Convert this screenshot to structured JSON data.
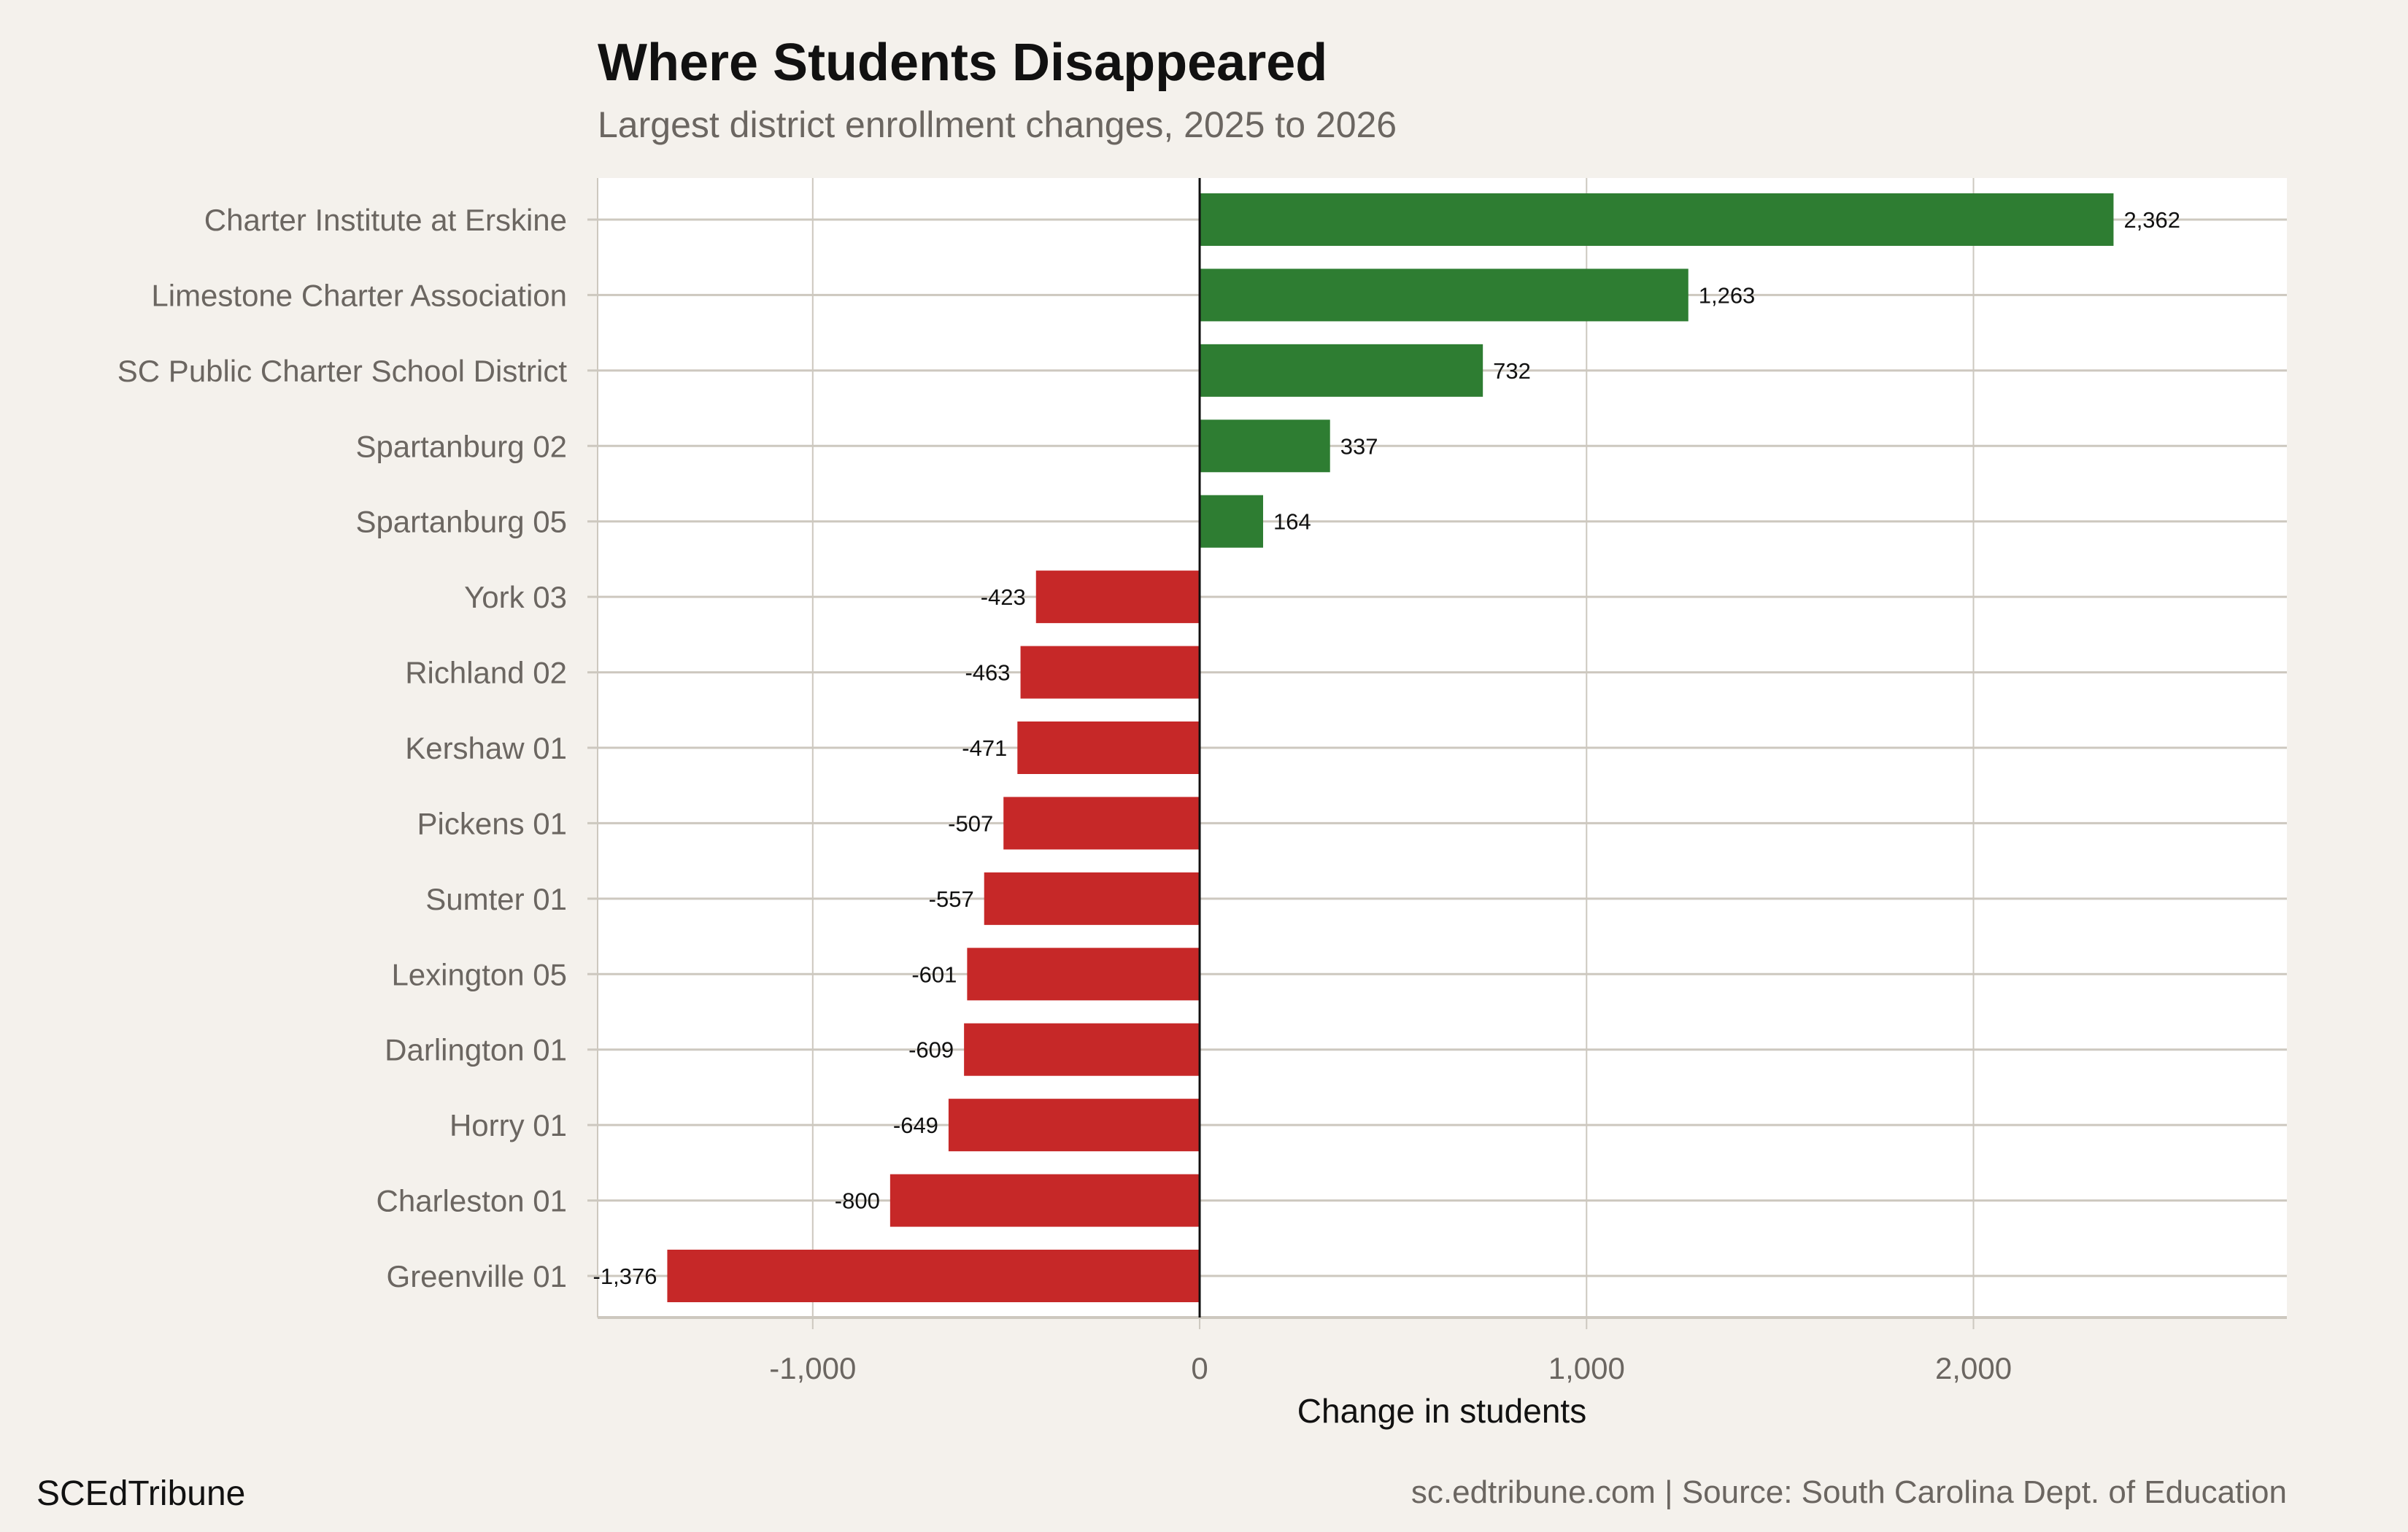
{
  "chart_data": {
    "type": "bar",
    "orientation": "horizontal",
    "title": "Where Students Disappeared",
    "subtitle": "Largest district enrollment changes, 2025 to 2026",
    "xlabel": "Change in students",
    "ylabel": "",
    "xlim": [
      -1556,
      2810
    ],
    "xticks": [
      -1000,
      0,
      1000,
      2000
    ],
    "xtick_labels": [
      "-1,000",
      "0",
      "1,000",
      "2,000"
    ],
    "grid": true,
    "categories": [
      "Charter Institute at Erskine",
      "Limestone Charter Association",
      "SC Public Charter School District",
      "Spartanburg 02",
      "Spartanburg 05",
      "York 03",
      "Richland 02",
      "Kershaw 01",
      "Pickens 01",
      "Sumter 01",
      "Lexington 05",
      "Darlington 01",
      "Horry 01",
      "Charleston 01",
      "Greenville 01"
    ],
    "values": [
      2362,
      1263,
      732,
      337,
      164,
      -423,
      -463,
      -471,
      -507,
      -557,
      -601,
      -609,
      -649,
      -800,
      -1376
    ],
    "value_labels": [
      "2,362",
      "1,263",
      "732",
      "337",
      "164",
      "-423",
      "-463",
      "-471",
      "-507",
      "-557",
      "-601",
      "-609",
      "-649",
      "-800",
      "-1,376"
    ],
    "colors": {
      "positive": "#2e7d32",
      "negative": "#c62828",
      "background": "#f4f1ec",
      "panel": "#ffffff",
      "grid": "#cdc8bf"
    }
  },
  "footer": {
    "brand": "SCEdTribune",
    "source": "sc.edtribune.com | Source: South Carolina Dept. of Education"
  }
}
